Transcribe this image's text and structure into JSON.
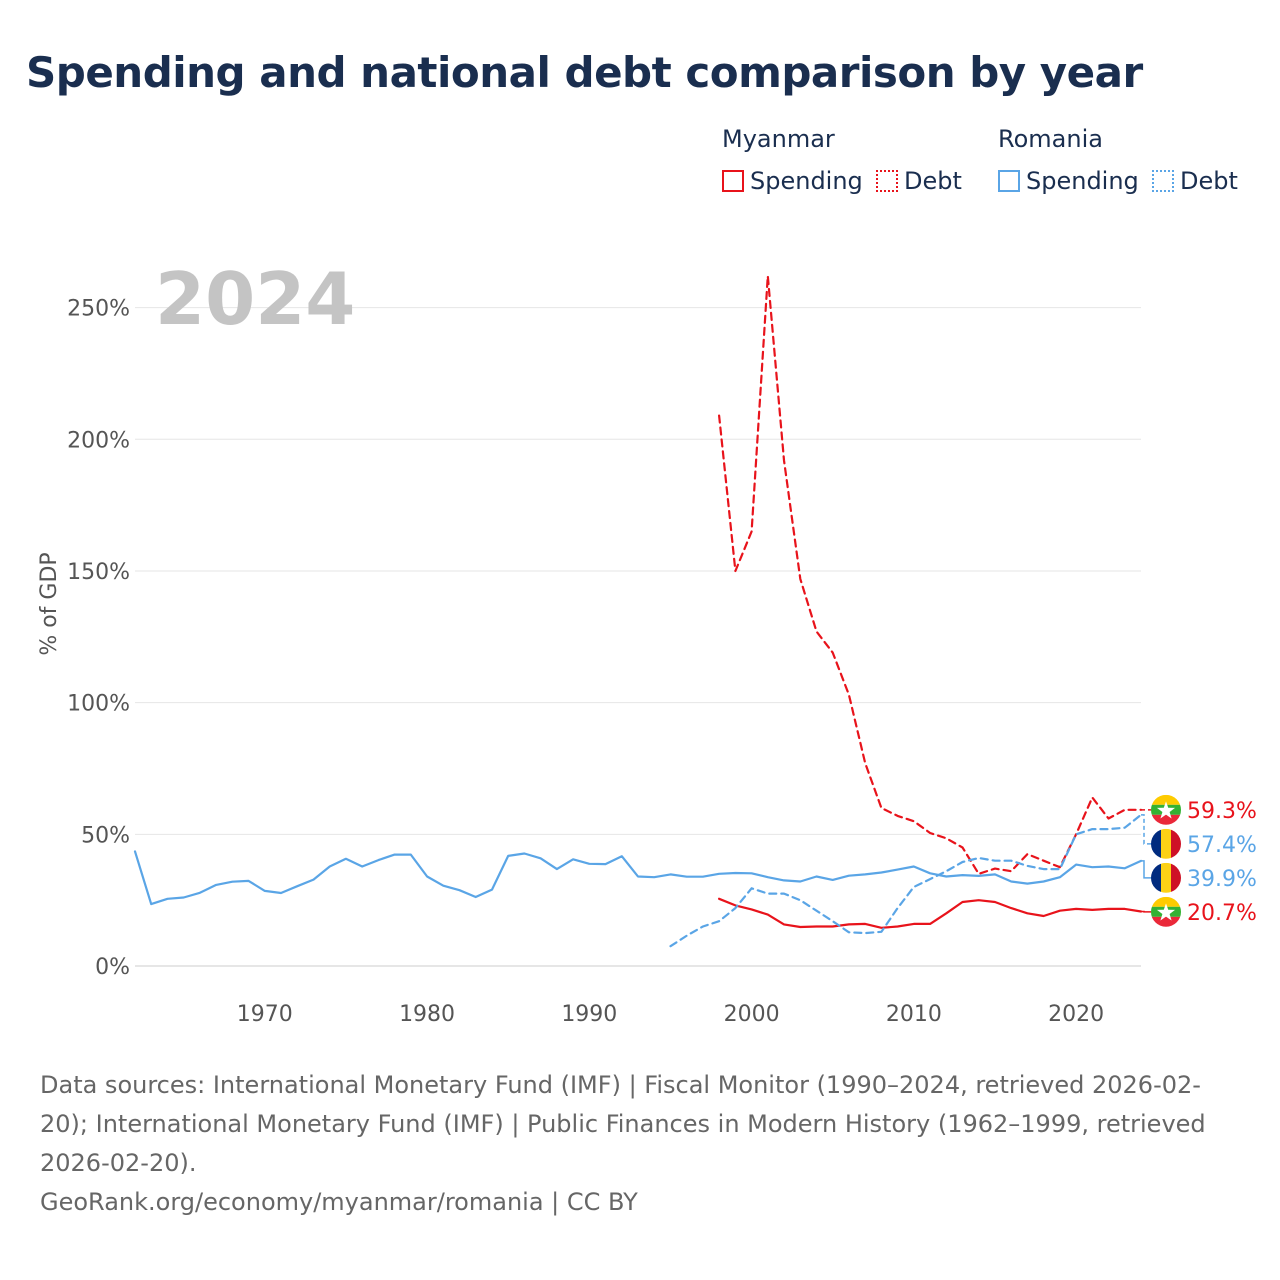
{
  "title": "Spending and national debt comparison by year",
  "year_label": "2024",
  "legend": {
    "groups": [
      {
        "name": "Myanmar",
        "color": "#e8131b",
        "items": [
          "Spending",
          "Debt"
        ]
      },
      {
        "name": "Romania",
        "color": "#5aa5e6",
        "items": [
          "Spending",
          "Debt"
        ]
      }
    ]
  },
  "footer": {
    "sources": "Data sources: International Monetary Fund (IMF) | Fiscal Monitor (1990–2024, retrieved 2026-02-20); International Monetary Fund (IMF) | Public Finances in Modern History (1962–1999, retrieved 2026-02-20).",
    "credit": "GeoRank.org/economy/myanmar/romania | CC BY"
  },
  "chart_data": {
    "type": "line",
    "ylabel": "% of GDP",
    "xlabel": "",
    "xlim": [
      1962,
      2024
    ],
    "ylim": [
      0,
      262
    ],
    "x_ticks": [
      1970,
      1980,
      1990,
      2000,
      2010,
      2020
    ],
    "y_ticks": [
      0,
      50,
      100,
      150,
      200,
      250
    ],
    "y_tick_labels": [
      "0%",
      "50%",
      "100%",
      "150%",
      "200%",
      "250%"
    ],
    "series": [
      {
        "name": "Myanmar Spending",
        "country": "Myanmar",
        "kind": "Spending",
        "color": "#e8131b",
        "dash": "solid",
        "end_label": "20.7%",
        "end_value": 20.7,
        "x": [
          1998,
          1999,
          2000,
          2001,
          2002,
          2003,
          2004,
          2005,
          2006,
          2007,
          2008,
          2009,
          2010,
          2011,
          2012,
          2013,
          2014,
          2015,
          2016,
          2017,
          2018,
          2019,
          2020,
          2021,
          2022,
          2023,
          2024
        ],
        "values": [
          25.5,
          23,
          21.5,
          19.5,
          15.8,
          14.8,
          15,
          15,
          15.8,
          16,
          14.5,
          15,
          16,
          16,
          20,
          24.3,
          25,
          24.3,
          22,
          20,
          19,
          21,
          21.7,
          21.3,
          21.7,
          21.7,
          20.7
        ]
      },
      {
        "name": "Myanmar Debt",
        "country": "Myanmar",
        "kind": "Debt",
        "color": "#e8131b",
        "dash": "dashed",
        "end_label": "59.3%",
        "end_value": 59.3,
        "x": [
          1998,
          1999,
          2000,
          2001,
          2002,
          2003,
          2004,
          2005,
          2006,
          2007,
          2008,
          2009,
          2010,
          2011,
          2012,
          2013,
          2014,
          2015,
          2016,
          2017,
          2018,
          2019,
          2020,
          2021,
          2022,
          2023,
          2024
        ],
        "values": [
          209,
          150,
          165,
          262,
          192,
          147,
          127,
          119,
          103,
          77,
          60,
          57,
          55,
          50.5,
          48.5,
          45,
          35,
          37,
          36,
          42.5,
          40,
          37.5,
          50,
          64,
          56,
          59.3,
          59.3
        ]
      },
      {
        "name": "Romania Spending",
        "country": "Romania",
        "kind": "Spending",
        "color": "#5aa5e6",
        "dash": "solid",
        "end_label": "39.9%",
        "end_value": 39.9,
        "x": [
          1962,
          1963,
          1964,
          1965,
          1966,
          1967,
          1968,
          1969,
          1970,
          1971,
          1972,
          1973,
          1974,
          1975,
          1976,
          1977,
          1978,
          1979,
          1980,
          1981,
          1982,
          1983,
          1984,
          1985,
          1986,
          1987,
          1988,
          1989,
          1990,
          1991,
          1992,
          1993,
          1994,
          1995,
          1996,
          1997,
          1998,
          1999,
          2000,
          2001,
          2002,
          2003,
          2004,
          2005,
          2006,
          2007,
          2008,
          2009,
          2010,
          2011,
          2012,
          2013,
          2014,
          2015,
          2016,
          2017,
          2018,
          2019,
          2020,
          2021,
          2022,
          2023,
          2024
        ],
        "values": [
          43.5,
          23.5,
          25.5,
          26,
          27.8,
          30.8,
          32,
          32.3,
          28.5,
          27.7,
          30.3,
          32.8,
          37.8,
          40.7,
          37.8,
          40.2,
          42.3,
          42.3,
          34,
          30.5,
          28.8,
          26.2,
          29,
          41.8,
          42.7,
          40.9,
          36.8,
          40.5,
          38.8,
          38.7,
          41.7,
          34,
          33.7,
          34.8,
          33.9,
          33.9,
          35,
          35.3,
          35.2,
          33.7,
          32.5,
          32.1,
          34,
          32.7,
          34.3,
          34.8,
          35.5,
          36.6,
          37.8,
          35.2,
          34,
          34.5,
          34.2,
          34.8,
          32.1,
          31.3,
          32.1,
          33.7,
          38.5,
          37.5,
          37.8,
          37.1,
          39.9
        ]
      },
      {
        "name": "Romania Debt",
        "country": "Romania",
        "kind": "Debt",
        "color": "#5aa5e6",
        "dash": "dashed",
        "end_label": "57.4%",
        "end_value": 57.4,
        "x": [
          1995,
          1996,
          1997,
          1998,
          1999,
          2000,
          2001,
          2002,
          2003,
          2004,
          2005,
          2006,
          2007,
          2008,
          2009,
          2010,
          2011,
          2012,
          2013,
          2014,
          2015,
          2016,
          2017,
          2018,
          2019,
          2020,
          2021,
          2022,
          2023,
          2024
        ],
        "values": [
          7.5,
          11.5,
          15,
          17,
          22,
          29.5,
          27.5,
          27.5,
          25,
          21,
          17,
          12.8,
          12.5,
          13,
          22,
          30,
          33,
          36,
          39.5,
          41,
          40,
          40,
          38,
          36.8,
          36.8,
          50,
          52,
          52,
          52.5,
          57.4
        ]
      }
    ]
  }
}
